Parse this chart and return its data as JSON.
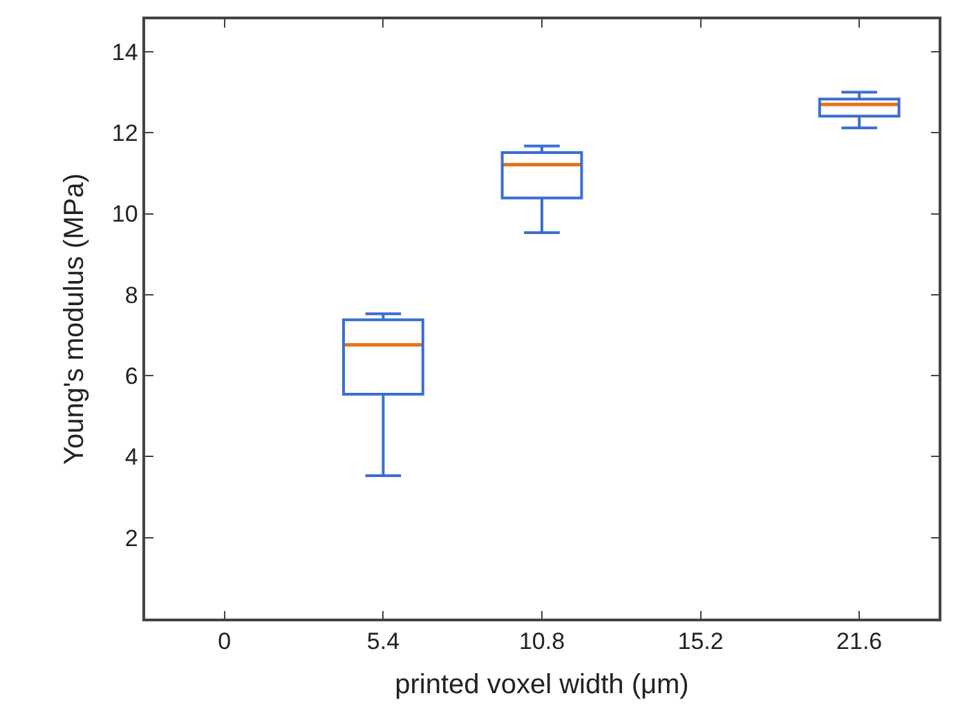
{
  "chart_data": {
    "type": "box",
    "xlabel": "printed voxel width (μm)",
    "ylabel": "Young's modulus (MPa)",
    "categories": [
      "0",
      "5.4",
      "10.8",
      "15.2",
      "21.6"
    ],
    "series": [
      {
        "color": "#3a6fd0",
        "boxes": [
          null,
          {
            "low": 3.53,
            "q1": 5.54,
            "median": 6.76,
            "q3": 7.38,
            "high": 7.53
          },
          {
            "low": 9.53,
            "q1": 10.39,
            "median": 11.21,
            "q3": 11.51,
            "high": 11.67
          },
          null,
          {
            "low": 12.12,
            "q1": 12.41,
            "median": 12.7,
            "q3": 12.83,
            "high": 13.0
          }
        ]
      }
    ],
    "ylim": [
      0,
      14.8
    ],
    "yticks": [
      2,
      4,
      6,
      8,
      10,
      12,
      14
    ]
  }
}
